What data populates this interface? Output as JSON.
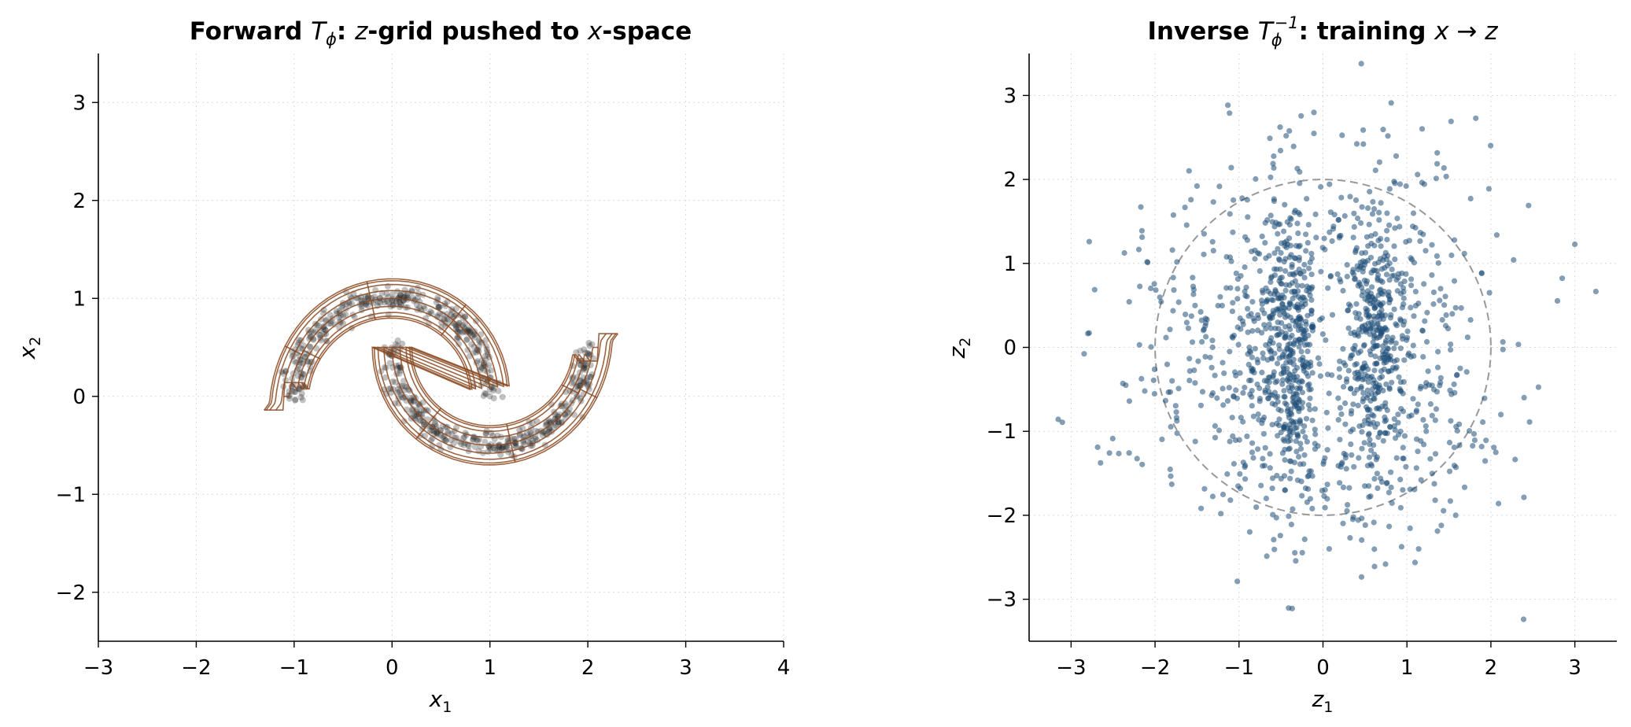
{
  "figure": {
    "panels": [
      {
        "id": "forward",
        "title": {
          "pre": "Forward  ",
          "T": "T",
          "sub": "ϕ",
          "mid1": ":  ",
          "z": "z",
          "mid2": "-grid pushed to ",
          "x": "x",
          "post": "-space"
        },
        "xlabel": {
          "sym": "x",
          "sub": "1"
        },
        "ylabel": {
          "sym": "x",
          "sub": "2"
        },
        "xticks": [
          "−3",
          "−2",
          "−1",
          "0",
          "1",
          "2",
          "3",
          "4"
        ],
        "yticks": [
          "−2",
          "−1",
          "0",
          "1",
          "2",
          "3"
        ]
      },
      {
        "id": "inverse",
        "title": {
          "pre": "Inverse  ",
          "T": "T",
          "sub": "ϕ",
          "sup": "−1",
          "mid": ":  training ",
          "x": "x",
          "arrow": " → ",
          "z": "z"
        },
        "xlabel": {
          "sym": "z",
          "sub": "1"
        },
        "ylabel": {
          "sym": "z",
          "sub": "2"
        },
        "xticks": [
          "−3",
          "−2",
          "−1",
          "0",
          "1",
          "2",
          "3"
        ],
        "yticks": [
          "−3",
          "−2",
          "−1",
          "0",
          "1",
          "2",
          "3"
        ]
      }
    ]
  },
  "chart_data": [
    {
      "type": "scatter",
      "title": "Forward Tϕ: z-grid pushed to x-space",
      "xlabel": "x1",
      "ylabel": "x2",
      "xlim": [
        -3,
        4
      ],
      "ylim": [
        -2.5,
        3.5
      ],
      "xticks": [
        -3,
        -2,
        -1,
        0,
        1,
        2,
        3,
        4
      ],
      "yticks": [
        -2,
        -1,
        0,
        1,
        2,
        3
      ],
      "grid": true,
      "series": [
        {
          "kind": "scatter",
          "color": "#222222",
          "opacity": 0.28,
          "description_of_shape": "two interleaving half-moons",
          "moons": [
            {
              "cx": 0.0,
              "cy": 0.0,
              "r": 1.0,
              "theta_range_deg": [
                0,
                180
              ],
              "noise": 0.06,
              "n": 360
            },
            {
              "cx": 1.0,
              "cy": 0.5,
              "r": 1.0,
              "theta_range_deg": [
                180,
                360
              ],
              "noise": 0.06,
              "n": 360
            }
          ]
        },
        {
          "kind": "grid-lines",
          "color": "#8B4A22",
          "opacity": 0.85,
          "lines_per_direction": 9,
          "z_range": [
            -2.5,
            2.5
          ]
        }
      ]
    },
    {
      "type": "scatter",
      "title": "Inverse Tϕ−1: training x → z",
      "xlabel": "z1",
      "ylabel": "z2",
      "xlim": [
        -3.5,
        3.5
      ],
      "ylim": [
        -3.5,
        3.5
      ],
      "xticks": [
        -3,
        -2,
        -1,
        0,
        1,
        2,
        3
      ],
      "yticks": [
        -3,
        -2,
        -1,
        0,
        1,
        2,
        3
      ],
      "grid": true,
      "reference_circle": {
        "radius": 2,
        "color": "#999999",
        "style": "dashed"
      },
      "series": [
        {
          "kind": "scatter",
          "color": "#1f4e79",
          "opacity": 0.55,
          "n": 1500,
          "distribution": "approximately standard normal with two dense vertical bands near z1 = -0.4 and z1 = 0.6 and a sparse gap near z1 = 0.1"
        }
      ]
    }
  ]
}
